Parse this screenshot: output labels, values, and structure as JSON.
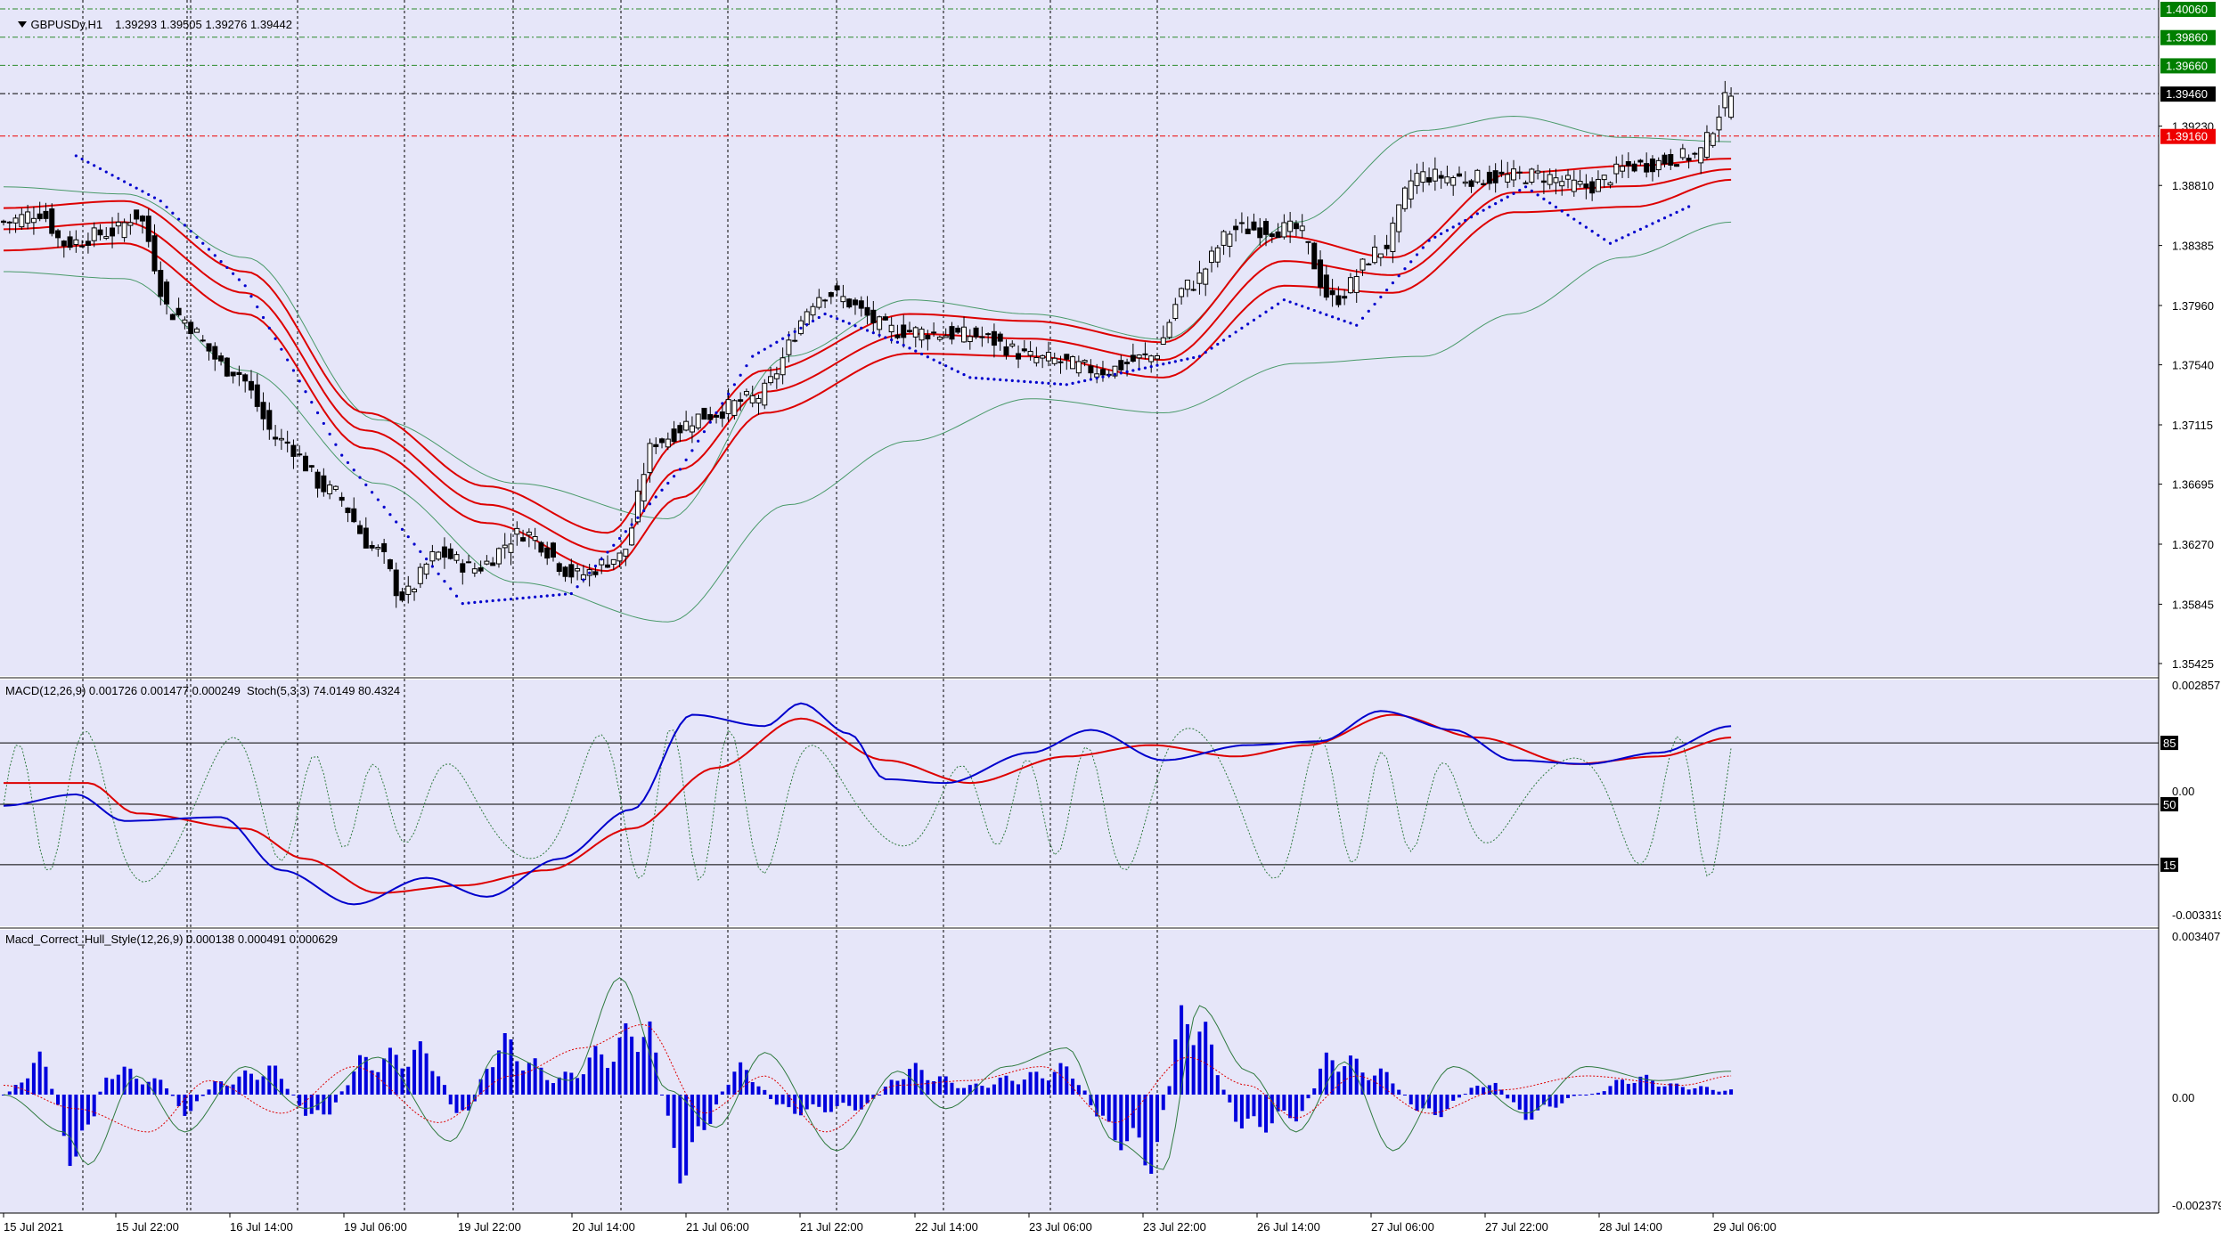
{
  "window": {
    "title": "GBPUSDy,H1",
    "ohlc": [
      "1.39293",
      "1.39505",
      "1.39276",
      "1.39442"
    ]
  },
  "colors": {
    "background": "#e6e6f9",
    "grid": "#000000",
    "bull_candle": "#ffffff",
    "bear_candle": "#000000",
    "envelope": "#dd0000",
    "bollinger": "#4a9a6a",
    "sar": "#0000cc",
    "macd_main": "#0000cc",
    "macd_signal": "#dd0000",
    "stoch": "#2f7a3f",
    "hist": "#0000dd",
    "tag_green": "#007f00",
    "tag_red": "#ee0000",
    "tag_black": "#000000"
  },
  "price_axis": {
    "ticks": [
      "1.40060",
      "1.39860",
      "1.39660",
      "1.39460",
      "1.39230",
      "1.39160",
      "1.38810",
      "1.38385",
      "1.37960",
      "1.37540",
      "1.37115",
      "1.36695",
      "1.36270",
      "1.35845",
      "1.35425"
    ],
    "tags": [
      {
        "label": "1.40060",
        "value": 1.4006,
        "style": "green"
      },
      {
        "label": "1.39860",
        "value": 1.3986,
        "style": "green"
      },
      {
        "label": "1.39660",
        "value": 1.3966,
        "style": "green"
      },
      {
        "label": "1.39460",
        "value": 1.3946,
        "style": "black"
      },
      {
        "label": "1.39160",
        "value": 1.3916,
        "style": "red"
      }
    ],
    "ylim": [
      1.351,
      1.4013
    ]
  },
  "time_axis": {
    "labels": [
      "15 Jul 2021",
      "15 Jul 22:00",
      "16 Jul 14:00",
      "19 Jul 06:00",
      "19 Jul 22:00",
      "20 Jul 14:00",
      "21 Jul 06:00",
      "21 Jul 22:00",
      "22 Jul 14:00",
      "23 Jul 06:00",
      "23 Jul 22:00",
      "26 Jul 14:00",
      "27 Jul 06:00",
      "27 Jul 22:00",
      "28 Jul 14:00",
      "29 Jul 06:00"
    ]
  },
  "macd_pane": {
    "label": "MACD(12,26,9) 0.001726 0.001477 0.000249  Stoch(5,3,3) 74.0149 80.4324",
    "ticks": [
      "0.002857",
      "0.00",
      "-0.003319"
    ],
    "levels": [
      "85",
      "50",
      "15"
    ]
  },
  "hull_pane": {
    "label": "Macd_Correct_Hull_Style(12,26,9) 0.000138 0.000491 0.000629",
    "ticks": [
      "0.003407",
      "0.00",
      "-0.002379"
    ]
  },
  "chart_data": [
    {
      "type": "candlestick",
      "title": "GBPUSDy,H1",
      "ylim": [
        1.351,
        1.4013
      ],
      "grid": true,
      "bars": 232,
      "anchors_close": [
        [
          0,
          1.3855
        ],
        [
          6,
          1.3862
        ],
        [
          10,
          1.384
        ],
        [
          18,
          1.3848
        ],
        [
          22,
          1.386
        ],
        [
          28,
          1.379
        ],
        [
          38,
          1.375
        ],
        [
          46,
          1.37
        ],
        [
          54,
          1.3665
        ],
        [
          62,
          1.3622
        ],
        [
          66,
          1.359
        ],
        [
          72,
          1.362
        ],
        [
          78,
          1.361
        ],
        [
          86,
          1.3635
        ],
        [
          95,
          1.3605
        ],
        [
          102,
          1.3618
        ],
        [
          108,
          1.37
        ],
        [
          116,
          1.3718
        ],
        [
          124,
          1.373
        ],
        [
          136,
          1.3805
        ],
        [
          148,
          1.3778
        ],
        [
          160,
          1.3775
        ],
        [
          172,
          1.3758
        ],
        [
          182,
          1.375
        ],
        [
          190,
          1.376
        ],
        [
          196,
          1.381
        ],
        [
          204,
          1.385
        ],
        [
          214,
          1.385
        ],
        [
          220,
          1.38
        ],
        [
          228,
          1.3835
        ],
        [
          234,
          1.3888
        ],
        [
          244,
          1.3886
        ],
        [
          254,
          1.3888
        ],
        [
          262,
          1.388
        ],
        [
          270,
          1.3895
        ],
        [
          280,
          1.3902
        ],
        [
          286,
          1.3944
        ]
      ],
      "envelope_upper_anchors": [
        [
          0,
          1.3865
        ],
        [
          20,
          1.387
        ],
        [
          40,
          1.382
        ],
        [
          60,
          1.372
        ],
        [
          80,
          1.3668
        ],
        [
          100,
          1.3635
        ],
        [
          112,
          1.37
        ],
        [
          126,
          1.375
        ],
        [
          150,
          1.379
        ],
        [
          170,
          1.3785
        ],
        [
          192,
          1.377
        ],
        [
          212,
          1.3845
        ],
        [
          230,
          1.383
        ],
        [
          250,
          1.389
        ],
        [
          270,
          1.3895
        ],
        [
          286,
          1.39
        ]
      ],
      "envelope_lower_anchors": [
        [
          0,
          1.3835
        ],
        [
          20,
          1.384
        ],
        [
          40,
          1.379
        ],
        [
          60,
          1.3695
        ],
        [
          80,
          1.3642
        ],
        [
          100,
          1.3608
        ],
        [
          112,
          1.366
        ],
        [
          126,
          1.372
        ],
        [
          150,
          1.3762
        ],
        [
          170,
          1.376
        ],
        [
          192,
          1.3745
        ],
        [
          212,
          1.381
        ],
        [
          230,
          1.3805
        ],
        [
          250,
          1.3862
        ],
        [
          270,
          1.3866
        ],
        [
          286,
          1.3885
        ]
      ],
      "bollinger_upper_anchors": [
        [
          0,
          1.388
        ],
        [
          20,
          1.3875
        ],
        [
          40,
          1.383
        ],
        [
          62,
          1.3715
        ],
        [
          85,
          1.367
        ],
        [
          110,
          1.3645
        ],
        [
          130,
          1.376
        ],
        [
          150,
          1.38
        ],
        [
          170,
          1.379
        ],
        [
          192,
          1.3772
        ],
        [
          214,
          1.3855
        ],
        [
          235,
          1.392
        ],
        [
          250,
          1.393
        ],
        [
          268,
          1.3915
        ],
        [
          286,
          1.3912
        ]
      ],
      "bollinger_lower_anchors": [
        [
          0,
          1.382
        ],
        [
          20,
          1.3815
        ],
        [
          40,
          1.375
        ],
        [
          62,
          1.367
        ],
        [
          85,
          1.36
        ],
        [
          110,
          1.3572
        ],
        [
          130,
          1.3655
        ],
        [
          150,
          1.37
        ],
        [
          170,
          1.373
        ],
        [
          192,
          1.372
        ],
        [
          214,
          1.3755
        ],
        [
          235,
          1.376
        ],
        [
          250,
          1.379
        ],
        [
          268,
          1.383
        ],
        [
          286,
          1.3855
        ]
      ],
      "sar_dots": [
        [
          12,
          1.3902
        ],
        [
          26,
          1.387
        ],
        [
          40,
          1.381
        ],
        [
          56,
          1.369
        ],
        [
          76,
          1.3585
        ],
        [
          94,
          1.3592
        ],
        [
          112,
          1.368
        ],
        [
          124,
          1.376
        ],
        [
          136,
          1.379
        ],
        [
          148,
          1.377
        ],
        [
          160,
          1.3745
        ],
        [
          176,
          1.374
        ],
        [
          198,
          1.376
        ],
        [
          212,
          1.38
        ],
        [
          224,
          1.3782
        ],
        [
          236,
          1.3842
        ],
        [
          252,
          1.388
        ],
        [
          266,
          1.384
        ],
        [
          280,
          1.3868
        ]
      ]
    },
    {
      "type": "line",
      "title": "MACD(12,26,9) 0.001726 0.001477 0.000249  Stoch(5,3,3) 74.0149 80.4324",
      "ylim": [
        -0.003319,
        0.002857
      ],
      "series": [
        {
          "name": "MACD",
          "anchors": [
            [
              0,
              -0.0004
            ],
            [
              12,
              -0.0001
            ],
            [
              20,
              -0.0008
            ],
            [
              36,
              -0.0007
            ],
            [
              46,
              -0.0021
            ],
            [
              58,
              -0.003
            ],
            [
              70,
              -0.0023
            ],
            [
              80,
              -0.0028
            ],
            [
              92,
              -0.0018
            ],
            [
              104,
              -0.0005
            ],
            [
              114,
              0.002
            ],
            [
              126,
              0.0017
            ],
            [
              132,
              0.0023
            ],
            [
              140,
              0.0015
            ],
            [
              146,
              0.0003
            ],
            [
              156,
              0.0002
            ],
            [
              170,
              0.001
            ],
            [
              180,
              0.0016
            ],
            [
              192,
              0.0008
            ],
            [
              206,
              0.0012
            ],
            [
              218,
              0.0013
            ],
            [
              228,
              0.0021
            ],
            [
              240,
              0.0016
            ],
            [
              250,
              0.0008
            ],
            [
              262,
              0.0007
            ],
            [
              274,
              0.001
            ],
            [
              286,
              0.0017
            ]
          ]
        },
        {
          "name": "Signal",
          "anchors": [
            [
              0,
              0.0002
            ],
            [
              14,
              0.0002
            ],
            [
              22,
              -0.0006
            ],
            [
              40,
              -0.001
            ],
            [
              50,
              -0.0018
            ],
            [
              62,
              -0.0027
            ],
            [
              76,
              -0.0025
            ],
            [
              90,
              -0.0021
            ],
            [
              104,
              -0.001
            ],
            [
              118,
              0.0006
            ],
            [
              132,
              0.0019
            ],
            [
              146,
              0.0008
            ],
            [
              160,
              0.0002
            ],
            [
              176,
              0.0009
            ],
            [
              190,
              0.0012
            ],
            [
              204,
              0.0009
            ],
            [
              216,
              0.0012
            ],
            [
              230,
              0.002
            ],
            [
              244,
              0.0014
            ],
            [
              260,
              0.0007
            ],
            [
              274,
              0.0009
            ],
            [
              286,
              0.0014
            ]
          ]
        }
      ],
      "levels": [
        85,
        50,
        15
      ]
    },
    {
      "type": "bar",
      "title": "Macd_Correct_Hull_Style(12,26,9) 0.000138 0.000491 0.000629",
      "ylim": [
        -0.002379,
        0.003407
      ],
      "hist_anchors": [
        [
          0,
          0.0
        ],
        [
          6,
          0.0008
        ],
        [
          12,
          -0.0015
        ],
        [
          18,
          0.0006
        ],
        [
          26,
          0.0003
        ],
        [
          30,
          -0.0004
        ],
        [
          36,
          0.0003
        ],
        [
          44,
          0.0006
        ],
        [
          52,
          -0.0006
        ],
        [
          60,
          0.0008
        ],
        [
          70,
          0.001
        ],
        [
          76,
          -0.0006
        ],
        [
          82,
          0.0012
        ],
        [
          92,
          0.0004
        ],
        [
          100,
          0.001
        ],
        [
          106,
          0.0017
        ],
        [
          112,
          -0.0017
        ],
        [
          122,
          0.0006
        ],
        [
          130,
          -0.0004
        ],
        [
          142,
          -0.0003
        ],
        [
          150,
          0.0006
        ],
        [
          160,
          0.0002
        ],
        [
          168,
          0.0004
        ],
        [
          176,
          0.0006
        ],
        [
          184,
          -0.001
        ],
        [
          190,
          -0.0015
        ],
        [
          196,
          0.002
        ],
        [
          206,
          -0.0008
        ],
        [
          214,
          -0.0005
        ],
        [
          220,
          0.0009
        ],
        [
          228,
          0.0005
        ],
        [
          236,
          -0.0005
        ],
        [
          246,
          0.0003
        ],
        [
          252,
          -0.0005
        ],
        [
          262,
          0.0
        ],
        [
          270,
          0.0004
        ],
        [
          278,
          0.0002
        ],
        [
          286,
          0.0001
        ]
      ],
      "line_anchors": [
        [
          0,
          0.0
        ],
        [
          10,
          -0.0008
        ],
        [
          14,
          -0.0015
        ],
        [
          22,
          0.0004
        ],
        [
          30,
          -0.0008
        ],
        [
          40,
          0.0006
        ],
        [
          50,
          -0.0003
        ],
        [
          62,
          0.0008
        ],
        [
          74,
          -0.001
        ],
        [
          82,
          0.0009
        ],
        [
          94,
          0.0003
        ],
        [
          102,
          0.0025
        ],
        [
          110,
          0.0001
        ],
        [
          118,
          -0.0007
        ],
        [
          126,
          0.0009
        ],
        [
          138,
          -0.0012
        ],
        [
          148,
          0.0005
        ],
        [
          156,
          -0.0003
        ],
        [
          166,
          0.0006
        ],
        [
          176,
          0.001
        ],
        [
          184,
          -0.001
        ],
        [
          192,
          -0.0016
        ],
        [
          198,
          0.0019
        ],
        [
          206,
          0.0005
        ],
        [
          214,
          -0.0008
        ],
        [
          222,
          0.0007
        ],
        [
          230,
          -0.0012
        ],
        [
          240,
          0.0006
        ],
        [
          252,
          -0.0004
        ],
        [
          262,
          0.0006
        ],
        [
          274,
          0.0003
        ],
        [
          286,
          0.0005
        ]
      ],
      "signal_anchors": [
        [
          0,
          0.0002
        ],
        [
          12,
          -0.0003
        ],
        [
          24,
          -0.0008
        ],
        [
          34,
          0.0003
        ],
        [
          46,
          -0.0004
        ],
        [
          58,
          0.0006
        ],
        [
          72,
          -0.0006
        ],
        [
          84,
          0.0004
        ],
        [
          96,
          0.001
        ],
        [
          106,
          0.0015
        ],
        [
          116,
          -0.0004
        ],
        [
          126,
          0.0004
        ],
        [
          136,
          -0.0008
        ],
        [
          148,
          0.0002
        ],
        [
          160,
          0.0003
        ],
        [
          172,
          0.0006
        ],
        [
          184,
          -0.0006
        ],
        [
          196,
          0.0008
        ],
        [
          206,
          0.0002
        ],
        [
          214,
          -0.0005
        ],
        [
          224,
          0.0004
        ],
        [
          236,
          -0.0004
        ],
        [
          248,
          0.0001
        ],
        [
          262,
          0.0004
        ],
        [
          278,
          0.0002
        ],
        [
          286,
          0.0004
        ]
      ]
    }
  ]
}
